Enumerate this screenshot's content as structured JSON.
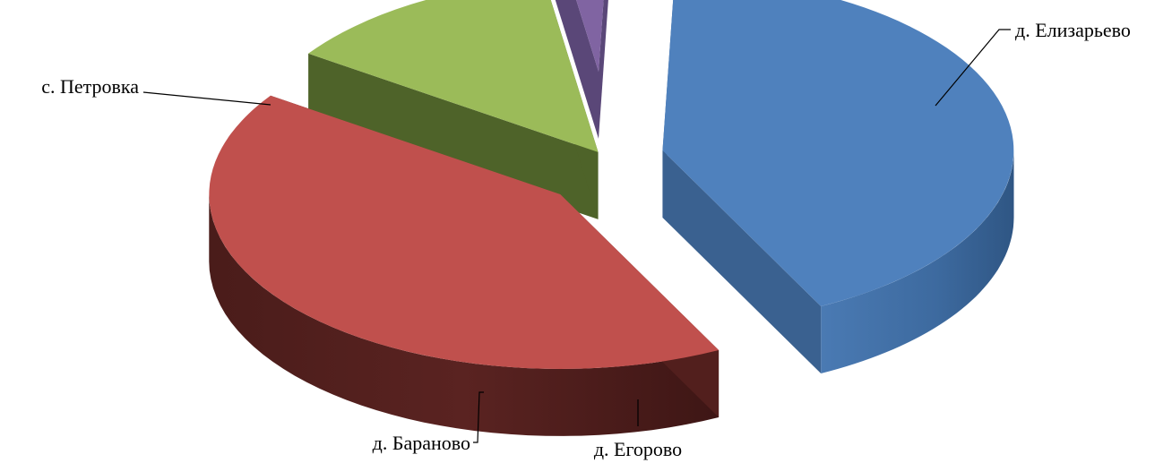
{
  "chart_data": {
    "type": "pie",
    "style": "3d-exploded",
    "title": "",
    "categories": [
      "с. Петровка",
      "д. Елизарьево",
      "д. Егорово",
      "д. Бараново"
    ],
    "values": [
      42,
      42,
      13,
      3
    ],
    "colors": [
      "#4f81bd",
      "#c0504d",
      "#9bbb59",
      "#8064a2"
    ],
    "side_colors": [
      "#3a6190",
      "#521f1d",
      "#4e6329",
      "#5a4778"
    ],
    "legend": "none",
    "data_labels": "category names with leader lines"
  }
}
